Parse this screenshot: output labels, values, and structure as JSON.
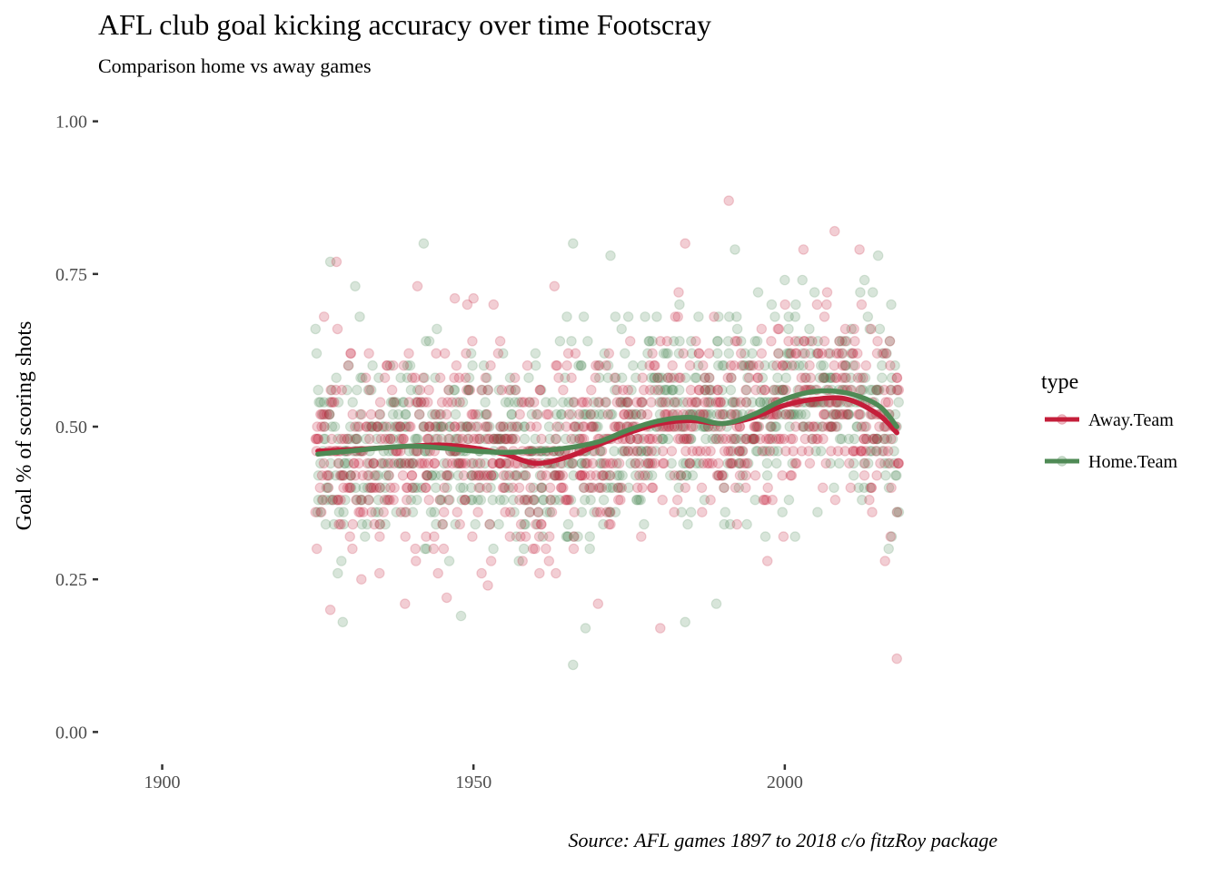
{
  "chart_data": {
    "type": "scatter",
    "title": "AFL club goal kicking accuracy over time Footscray",
    "subtitle": "Comparison home vs away games",
    "caption": "Source: AFL games 1897 to 2018 c/o fitzRoy package",
    "xlabel": "",
    "ylabel": "Goal % of scoring shots",
    "xlim": [
      1890,
      2033
    ],
    "ylim": [
      -0.05,
      1.05
    ],
    "x_ticks": [
      1900,
      1950,
      2000
    ],
    "x_tick_labels": [
      "1900",
      "1950",
      "2000"
    ],
    "y_ticks": [
      0,
      0.25,
      0.5,
      0.75,
      1
    ],
    "y_tick_labels": [
      "0.00",
      "0.25",
      "0.50",
      "0.75",
      "1.00"
    ],
    "grid": false,
    "legend": {
      "title": "type",
      "position": "right",
      "entries": [
        "Away.Team",
        "Home.Team"
      ]
    },
    "point_opacity": 0.22,
    "series": [
      {
        "name": "Away.Team",
        "color": "#c41e3a",
        "year_range": [
          1925,
          2018
        ],
        "points_per_year": 10,
        "mean": 0.47,
        "sd": 0.11,
        "smooth_x": [
          1925,
          1930,
          1935,
          1940,
          1945,
          1950,
          1955,
          1960,
          1965,
          1970,
          1975,
          1980,
          1985,
          1990,
          1995,
          2000,
          2005,
          2010,
          2015,
          2018
        ],
        "smooth_y": [
          0.46,
          0.462,
          0.465,
          0.468,
          0.47,
          0.465,
          0.455,
          0.44,
          0.45,
          0.47,
          0.49,
          0.505,
          0.51,
          0.505,
          0.515,
          0.535,
          0.545,
          0.545,
          0.52,
          0.49
        ],
        "notable_points": [
          {
            "x": 1926,
            "y": 0.68
          },
          {
            "x": 1927,
            "y": 0.2
          },
          {
            "x": 1928,
            "y": 0.77
          },
          {
            "x": 1932,
            "y": 0.25
          },
          {
            "x": 1939,
            "y": 0.21
          },
          {
            "x": 1941,
            "y": 0.73
          },
          {
            "x": 1947,
            "y": 0.71
          },
          {
            "x": 1950,
            "y": 0.71
          },
          {
            "x": 1963,
            "y": 0.73
          },
          {
            "x": 1970,
            "y": 0.21
          },
          {
            "x": 1980,
            "y": 0.17
          },
          {
            "x": 1984,
            "y": 0.8
          },
          {
            "x": 1991,
            "y": 0.87
          },
          {
            "x": 2003,
            "y": 0.79
          },
          {
            "x": 2008,
            "y": 0.82
          },
          {
            "x": 2012,
            "y": 0.79
          },
          {
            "x": 2017,
            "y": 0.32
          },
          {
            "x": 2018,
            "y": 0.12
          }
        ]
      },
      {
        "name": "Home.Team",
        "color": "#4f8a55",
        "year_range": [
          1925,
          2018
        ],
        "points_per_year": 10,
        "mean": 0.48,
        "sd": 0.11,
        "smooth_x": [
          1925,
          1930,
          1935,
          1940,
          1945,
          1950,
          1955,
          1960,
          1965,
          1970,
          1975,
          1980,
          1985,
          1990,
          1995,
          2000,
          2005,
          2010,
          2015,
          2018
        ],
        "smooth_y": [
          0.455,
          0.46,
          0.465,
          0.468,
          0.465,
          0.46,
          0.458,
          0.46,
          0.465,
          0.475,
          0.495,
          0.51,
          0.515,
          0.505,
          0.52,
          0.545,
          0.558,
          0.555,
          0.535,
          0.5
        ],
        "notable_points": [
          {
            "x": 1927,
            "y": 0.77
          },
          {
            "x": 1929,
            "y": 0.18
          },
          {
            "x": 1931,
            "y": 0.73
          },
          {
            "x": 1942,
            "y": 0.8
          },
          {
            "x": 1948,
            "y": 0.19
          },
          {
            "x": 1966,
            "y": 0.11
          },
          {
            "x": 1966,
            "y": 0.8
          },
          {
            "x": 1968,
            "y": 0.17
          },
          {
            "x": 1972,
            "y": 0.78
          },
          {
            "x": 1984,
            "y": 0.18
          },
          {
            "x": 1989,
            "y": 0.21
          },
          {
            "x": 1992,
            "y": 0.79
          },
          {
            "x": 2000,
            "y": 0.74
          },
          {
            "x": 2015,
            "y": 0.78
          },
          {
            "x": 2018,
            "y": 0.36
          }
        ]
      }
    ]
  }
}
